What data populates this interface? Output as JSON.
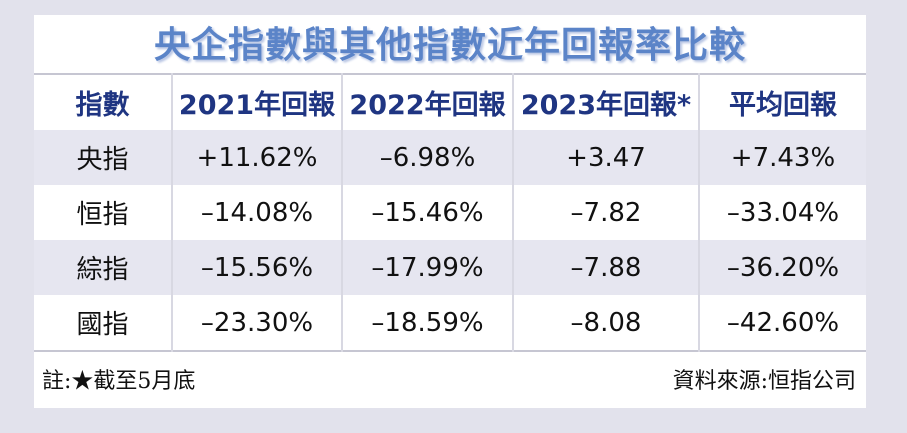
{
  "title": "央企指數與其他指數近年回報率比較",
  "colors": {
    "page_background": "#e2e2ec",
    "card_background": "#ffffff",
    "row_alternate": "#e6e6f0",
    "title_blue": "#5b84c8",
    "header_navy": "#1f3582",
    "divider_gray": "#c6c6d2"
  },
  "table": {
    "columns": [
      "指數",
      "2021年回報",
      "2022年回報",
      "2023年回報*",
      "平均回報"
    ],
    "rows": [
      [
        "央指",
        "+11.62%",
        "–6.98%",
        "+3.47",
        "+7.43%"
      ],
      [
        "恒指",
        "–14.08%",
        "–15.46%",
        "–7.82",
        "–33.04%"
      ],
      [
        "綜指",
        "–15.56%",
        "–17.99%",
        "–7.88",
        "–36.20%"
      ],
      [
        "國指",
        "–23.30%",
        "–18.59%",
        "–8.08",
        "–42.60%"
      ]
    ]
  },
  "footer": {
    "note": "註:★截至5月底",
    "source": "資料來源:恒指公司"
  },
  "chart_data": {
    "type": "table",
    "title": "央企指數與其他指數近年回報率比較",
    "columns": [
      "指數",
      "2021年回報",
      "2022年回報",
      "2023年回報*",
      "平均回報"
    ],
    "rows": [
      [
        "央指",
        "+11.62%",
        "–6.98%",
        "+3.47",
        "+7.43%"
      ],
      [
        "恒指",
        "–14.08%",
        "–15.46%",
        "–7.82",
        "–33.04%"
      ],
      [
        "綜指",
        "–15.56%",
        "–17.99%",
        "–7.88",
        "–36.20%"
      ],
      [
        "國指",
        "–23.30%",
        "–18.59%",
        "–8.08",
        "–42.60%"
      ]
    ],
    "indices": [
      "央指",
      "恒指",
      "綜指",
      "國指"
    ],
    "series": [
      {
        "name": "2021年回報",
        "values": [
          11.62,
          -14.08,
          -15.56,
          -23.3
        ]
      },
      {
        "name": "2022年回報",
        "values": [
          -6.98,
          -15.46,
          -17.99,
          -18.59
        ]
      },
      {
        "name": "2023年回報*",
        "values": [
          3.47,
          -7.82,
          -7.88,
          -8.08
        ]
      },
      {
        "name": "平均回報",
        "values": [
          7.43,
          -33.04,
          -36.2,
          -42.6
        ]
      }
    ],
    "note": "註:★截至5月底",
    "source": "資料來源:恒指公司"
  }
}
